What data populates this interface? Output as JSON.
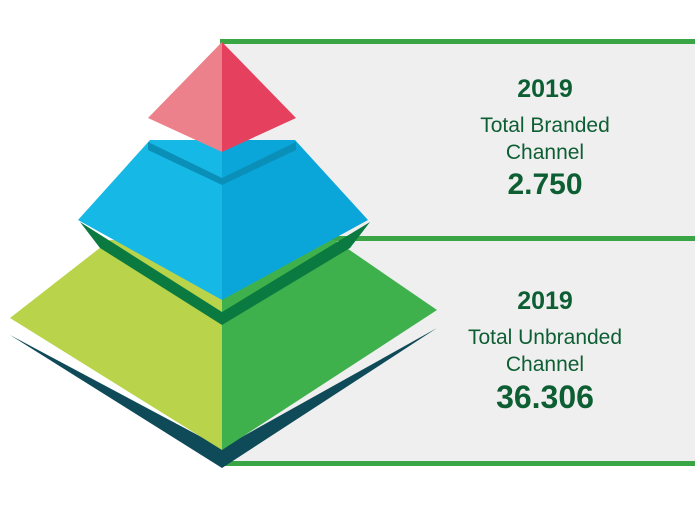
{
  "colors": {
    "text": "#0e5e33",
    "rule": "#3aa545",
    "panel": "#efefef",
    "tier_top_left": "#ec818c",
    "tier_top_right": "#e5405e",
    "tier_mid_left": "#16b9e6",
    "tier_mid_right": "#0aa6d9",
    "tier_mid_base": "#0a8fb8",
    "tier_bot_left": "#b9d44a",
    "tier_bot_right": "#3fb14c",
    "tier_bot_base": "#0b7a41",
    "base_shadow": "#0f4a58"
  },
  "branded": {
    "year": "2019",
    "label_line1": "Total Branded",
    "label_line2": "Channel",
    "value": "2.750"
  },
  "unbranded": {
    "year": "2019",
    "label_line1": "Total Unbranded",
    "label_line2": "Channel",
    "value": "36.306"
  }
}
